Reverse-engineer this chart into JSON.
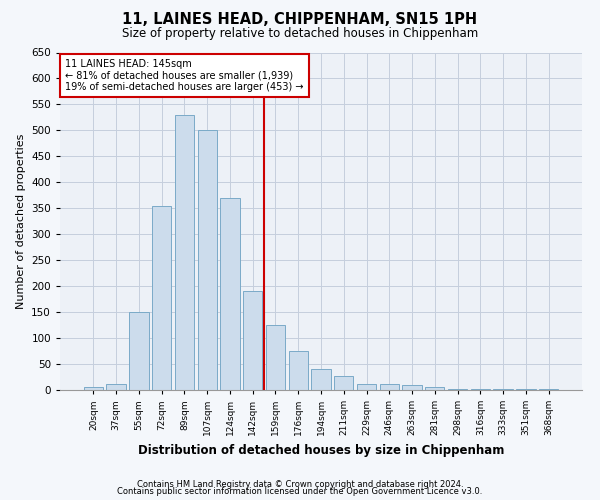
{
  "title": "11, LAINES HEAD, CHIPPENHAM, SN15 1PH",
  "subtitle": "Size of property relative to detached houses in Chippenham",
  "xlabel": "Distribution of detached houses by size in Chippenham",
  "ylabel": "Number of detached properties",
  "bar_labels": [
    "20sqm",
    "37sqm",
    "55sqm",
    "72sqm",
    "89sqm",
    "107sqm",
    "124sqm",
    "142sqm",
    "159sqm",
    "176sqm",
    "194sqm",
    "211sqm",
    "229sqm",
    "246sqm",
    "263sqm",
    "281sqm",
    "298sqm",
    "316sqm",
    "333sqm",
    "351sqm",
    "368sqm"
  ],
  "bar_values": [
    5,
    12,
    150,
    355,
    530,
    500,
    370,
    190,
    125,
    75,
    40,
    27,
    12,
    12,
    10,
    5,
    1,
    1,
    1,
    1,
    1
  ],
  "bar_color": "#ccdcec",
  "bar_edgecolor": "#7aaac8",
  "property_line_index": 7,
  "property_size": 145,
  "pct_smaller": 81,
  "n_smaller": 1939,
  "pct_larger": 19,
  "n_larger": 453,
  "line_color": "#cc0000",
  "annotation_box_edgecolor": "#cc0000",
  "background_color": "#f4f7fb",
  "plot_bg_color": "#edf1f7",
  "grid_color": "#c5cedd",
  "ylim": [
    0,
    650
  ],
  "yticks": [
    0,
    50,
    100,
    150,
    200,
    250,
    300,
    350,
    400,
    450,
    500,
    550,
    600,
    650
  ],
  "footer_line1": "Contains HM Land Registry data © Crown copyright and database right 2024.",
  "footer_line2": "Contains public sector information licensed under the Open Government Licence v3.0."
}
